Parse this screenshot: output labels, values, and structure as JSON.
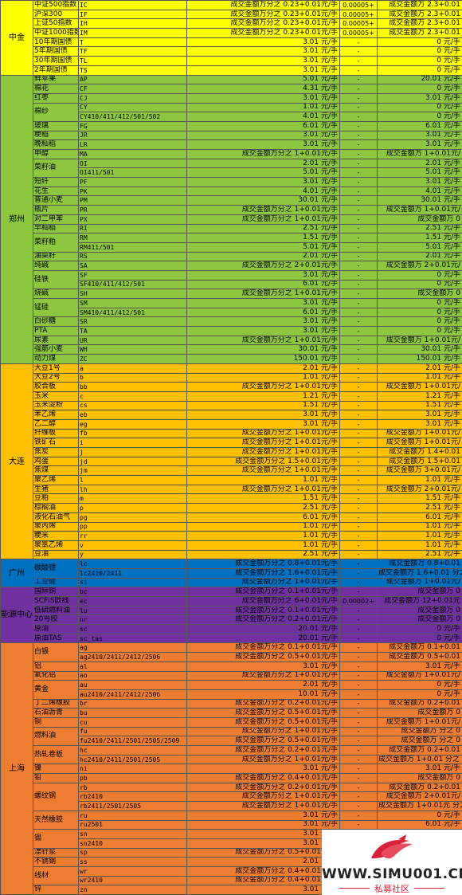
{
  "colors": {
    "中金": "#ffff00",
    "郑州": "#8dc63f",
    "大连": "#ffc000",
    "广州": "#0070c0",
    "能源中心": "#7030a0",
    "上海": "#ed7d31"
  },
  "groups": [
    {
      "exchange": "中金",
      "rows": [
        [
          "中证500指数",
          "IC",
          "成交金额万分之 0.23+0.01元/手",
          "0.00005+",
          "成交金额万 2.3+0.01"
        ],
        [
          "沪深300",
          "IF",
          "成交金额万分之 0.23+0.01元/手",
          "0.00005+",
          "成交金额万 2.3+0.01"
        ],
        [
          "上证50指数",
          "IH",
          "成交金额万分之 0.23+0.01元/手",
          "0.00005+",
          "成交金额万 2.3+0.01"
        ],
        [
          "中证1000指数",
          "IM",
          "成交金额万分之 0.23+0.01元/手",
          "0.00005+",
          "成交金额万 2.3+0.01"
        ],
        [
          "10年期国债",
          "T",
          "3.01 元/手",
          "-",
          "0 元/手"
        ],
        [
          "5年期国债",
          "TF",
          "3.01 元/手",
          "-",
          "0 元/手"
        ],
        [
          "30年期国债",
          "TL",
          "3.01 元/手",
          "-",
          "0 元/手"
        ],
        [
          "2年期国债",
          "TS",
          "3.01 元/手",
          "-",
          "0 元/手"
        ]
      ]
    },
    {
      "exchange": "郑州",
      "rows": [
        [
          "鲜苹果",
          "AP",
          "5.01 元/手",
          "-",
          "20.01 元/手"
        ],
        [
          "棉花",
          "CF",
          "4.31 元/手",
          "-",
          "0 元/手"
        ],
        [
          "红枣",
          "CJ",
          "3.01 元/手",
          "-",
          "3.01 元/手"
        ],
        [
          "棉纱",
          "CY",
          "1.01 元/手",
          "-",
          "0 元/手"
        ],
        [
          "",
          "CY410/411/412/501/502",
          "4.01 元/手",
          "-",
          "0 元/手"
        ],
        [
          "玻璃",
          "FG",
          "6.01 元/手",
          "-",
          "6.01 元/手"
        ],
        [
          "粳稻",
          "JR",
          "3.01 元/手",
          "-",
          "3.01 元/手"
        ],
        [
          "晚籼稻",
          "LR",
          "3.01 元/手",
          "-",
          "3.01 元/手"
        ],
        [
          "甲醇",
          "MA",
          "成交金额万分之 1+0.01元/手",
          "-",
          "成交金额万 1+0.01元/"
        ],
        [
          "菜籽油",
          "OI",
          "2.01 元/手",
          "-",
          "2.01 元/手"
        ],
        [
          "",
          "OI411/501",
          "5.01 元/手",
          "-",
          "5.01 元/手"
        ],
        [
          "短纤",
          "PF",
          "3.01 元/手",
          "-",
          "3.01 元/手"
        ],
        [
          "花生",
          "PK",
          "4.01 元/手",
          "-",
          "4.01 元/手"
        ],
        [
          "普通小麦",
          "PM",
          "30.01 元/手",
          "-",
          "30.01 元/手"
        ],
        [
          "瓶片",
          "PR",
          "成交金额万分之 1+0.01元/手",
          "-",
          "成交金额万 1+0.01元/"
        ],
        [
          "对二甲苯",
          "PX",
          "成交金额万分之 1+0.01元/手",
          "-",
          "成交金额万 0"
        ],
        [
          "早籼稻",
          "RI",
          "2.51 元/手",
          "-",
          "2.51 元/手"
        ],
        [
          "菜籽粕",
          "RM",
          "1.51 元/手",
          "-",
          "1.51 元/手"
        ],
        [
          "",
          "RM411/501",
          "5.01 元/手",
          "-",
          "5.01 元/手"
        ],
        [
          "油菜籽",
          "RS",
          "2.01 元/手",
          "-",
          "2.01 元/手"
        ],
        [
          "纯碱",
          "SA",
          "成交金额万分之 2+0.01元/手",
          "-",
          "成交金额万 2+0.01元/"
        ],
        [
          "硅铁",
          "SF",
          "3.01 元/手",
          "-",
          "0 元/手"
        ],
        [
          "",
          "SF410/411/412/501",
          "6.01 元/手",
          "-",
          "0 元/手"
        ],
        [
          "烧碱",
          "SH",
          "成交金额万分之 1+0.01元/手",
          "-",
          "成交金额万 0"
        ],
        [
          "锰硅",
          "SM",
          "3.01 元/手",
          "-",
          "0 元/手"
        ],
        [
          "",
          "SM410/411/412/501",
          "6.01 元/手",
          "-",
          "0 元/手"
        ],
        [
          "白砂糖",
          "SR",
          "3.01 元/手",
          "-",
          "0 元/手"
        ],
        [
          "PTA",
          "TA",
          "3.01 元/手",
          "-",
          "0 元/手"
        ],
        [
          "尿素",
          "UR",
          "成交金额万分之 1+0.01元/手",
          "-",
          "成交金额万 1+0.01元/"
        ],
        [
          "强筋小麦",
          "WH",
          "30.01 元/手",
          "-",
          "30.01 元/手"
        ],
        [
          "动力煤",
          "ZC",
          "150.01 元/手",
          "-",
          "150.01 元/手"
        ]
      ]
    },
    {
      "exchange": "大连",
      "rows": [
        [
          "大豆1号",
          "a",
          "2.01 元/手",
          "-",
          "2.01 元/手"
        ],
        [
          "大豆2号",
          "b",
          "1.01 元/手",
          "-",
          "1.01 元/手"
        ],
        [
          "胶合板",
          "bb",
          "成交金额万分之 1+0.01元/手",
          "-",
          "成交金额万 1+0.01元/"
        ],
        [
          "玉米",
          "c",
          "1.21 元/手",
          "-",
          "1.21 元/手"
        ],
        [
          "玉米淀粉",
          "cs",
          "1.51 元/手",
          "-",
          "1.51 元/手"
        ],
        [
          "苯乙烯",
          "eb",
          "3.01 元/手",
          "-",
          "3.01 元/手"
        ],
        [
          "乙二醇",
          "eg",
          "3.01 元/手",
          "-",
          "3.01 元/手"
        ],
        [
          "纤维板",
          "fb",
          "成交金额万分之 1+0.01元/手",
          "-",
          "成交金额万 1+0.01元/"
        ],
        [
          "铁矿石",
          "i",
          "成交金额万分之 1+0.01元/手",
          "-",
          "成交金额万 1+0.01元/"
        ],
        [
          "焦炭",
          "j",
          "成交金额万分之 1+0.01元/手",
          "-",
          "成交金额万 1.4+0.01"
        ],
        [
          "鸡蛋",
          "jd",
          "成交金额万分之 1.5+0.01元/手",
          "-",
          "成交金额万 1.5+0.01"
        ],
        [
          "焦煤",
          "jm",
          "成交金额万分之 1+0.01元/手",
          "-",
          "成交金额万 3+0.01元/"
        ],
        [
          "聚乙烯",
          "l",
          "1.01 元/手",
          "-",
          "1.01 元/手"
        ],
        [
          "生猪",
          "lh",
          "成交金额万分之 1+0.01元/手",
          "-",
          "成交金额万 2+0.01元/"
        ],
        [
          "豆粕",
          "m",
          "1.51 元/手",
          "-",
          "1.51 元/手"
        ],
        [
          "棕榈油",
          "p",
          "2.51 元/手",
          "-",
          "2.51 元/手"
        ],
        [
          "液化石油气",
          "pg",
          "6.01 元/手",
          "-",
          "6.01 元/手"
        ],
        [
          "聚丙烯",
          "pp",
          "1.01 元/手",
          "-",
          "1.01 元/手"
        ],
        [
          "粳米",
          "rr",
          "1.01 元/手",
          "-",
          "1.01 元/手"
        ],
        [
          "聚氯乙烯",
          "v",
          "1.01 元/手",
          "-",
          "1.01 元/手"
        ],
        [
          "豆油",
          "y",
          "2.51 元/手",
          "-",
          "2.51 元/手"
        ]
      ]
    },
    {
      "exchange": "广州",
      "rows": [
        [
          "碳酸锂",
          "lc",
          "成交金额万分之 0.8+0.01元/手",
          "-",
          "成交金额万 0.8+0.01"
        ],
        [
          "",
          "lc2410/2411",
          "成交金额万分之 1.6+0.01元/手",
          "-",
          "成交金额万 1.6+0.01 分之 元/手"
        ],
        [
          "工业硅",
          "si",
          "成交金额万分之 1+0.01元/手",
          "-",
          "成交金额万 1+0.01元/"
        ]
      ]
    },
    {
      "exchange": "能源中心",
      "rows": [
        [
          "国际铜",
          "bc",
          "成交金额万分之 0.1+0.01元/手",
          "-",
          "成交金额万 0"
        ],
        [
          "SCFIS欧线",
          "ec",
          "成交金额万分之 6+0.01元/手",
          "0.00002+",
          "成交金额万 12+0.01元"
        ],
        [
          "低硫燃料油",
          "lu",
          "成交金额万分之 0.1+0.01元/手",
          "-",
          "成交金额万 0"
        ],
        [
          "20号胶",
          "nr",
          "成交金额万分之 0.2+0.01元/手",
          "-",
          "成交金额万 0"
        ],
        [
          "原油",
          "sc",
          "20.01 元/手",
          "-",
          "0 元/手"
        ],
        [
          "原油TAS",
          "sc_tas",
          "20.01 元/手",
          "-",
          "0 元/手"
        ]
      ]
    },
    {
      "exchange": "上海",
      "rows": [
        [
          "白银",
          "ag",
          "成交金额万分之 0.1+0.01元/手",
          "-",
          "成交金额万 0.1+0.01"
        ],
        [
          "",
          "ag2410/2411/2412/2506",
          "成交金额万分之 0.5+0.01元/手",
          "-",
          "成交金额万 0.5+0.01"
        ],
        [
          "铝",
          "al",
          "3.01 元/手",
          "-",
          "3.01 元/手"
        ],
        [
          "氧化铝",
          "ao",
          "成交金额万分之 1+0.01元/手",
          "-",
          "成交金额万 1+0.01元/"
        ],
        [
          "黄金",
          "au",
          "2.01 元/手",
          "-",
          "0 元/手"
        ],
        [
          "",
          "au2410/2411/2412/2506",
          "10.01 元/手",
          "-",
          "0 元/手"
        ],
        [
          "丁二烯橡胶",
          "br",
          "成交金额万分之 0.2+0.01元/手",
          "-",
          "成交金额万 0.2+0.01"
        ],
        [
          "石油沥青",
          "bu",
          "成交金额万分之 0.5+0.01元/手",
          "-",
          "成交金额万 0"
        ],
        [
          "铜",
          "cu",
          "成交金额万分之 0.5+0.01元/手",
          "-",
          "成交金额万 1+0.01元/"
        ],
        [
          "燃料油",
          "fu",
          "成交金额万分之 1+0.01元/手",
          "-",
          "成交金额万 分之 0"
        ],
        [
          "",
          "fu2410/2411/2501/2505/2509",
          "成交金额万分之 0.5+0.01元/手",
          "-",
          "成交金额万 分之 0"
        ],
        [
          "热轧卷板",
          "hc",
          "成交金额万分之 0.2+0.01元/手",
          "-",
          "成交金额万 0.2+0.01"
        ],
        [
          "",
          "hc2410/2411/2501/2505",
          "成交金额万分之 1+0.01元/手",
          "-",
          "成交金额万 1+0.01 分之 元/手"
        ],
        [
          "镍",
          "ni",
          "3.01 元/手",
          "-",
          "3.01 元/手"
        ],
        [
          "铅",
          "pb",
          "成交金额万分之 0.4+0.01元/手",
          "-",
          "成交金额万 0"
        ],
        [
          "螺纹钢",
          "rb",
          "成交金额万分之 0.2+0.01元/手",
          "-",
          "成交金额万 0.2+0.01"
        ],
        [
          "",
          "rb2410",
          "成交金额万分之 1+0.01元/手",
          "-",
          "成交金额万 2+0.01元/"
        ],
        [
          "",
          "rb2411/2501/2505",
          "成交金额万分之 1+0.01元/手",
          "-",
          "成交金额万 1+0.01元 分之 手"
        ],
        [
          "天然橡胶",
          "ru",
          "3.01 元/手",
          "-",
          "0 元/手"
        ],
        [
          "",
          "ru2501",
          "3.01 元/手",
          "-",
          "6.01 元/手"
        ],
        [
          "锡",
          "sn",
          "3.01 元/手",
          "-",
          ""
        ],
        [
          "",
          "sn2410",
          "3.01 元/手",
          "-",
          ""
        ],
        [
          "漂针浆",
          "sp",
          "成交金额万分之 0.5+0.01元/手",
          "-",
          ""
        ],
        [
          "不锈钢",
          "ss",
          "2.01 元/手",
          "-",
          ""
        ],
        [
          "线材",
          "wr",
          "成交金额万分之 0.4+0.01元/手",
          "-",
          ""
        ],
        [
          "",
          "wr2410",
          "成交金额万分之 0.4+0.01元/手",
          "-",
          ""
        ],
        [
          "锌",
          "zn",
          "3.01 元/手",
          "-",
          ""
        ]
      ]
    }
  ],
  "watermark": {
    "site": "WWW.SIMU001.CN",
    "sub": "私募社区",
    "icon": "bull-logo-icon"
  }
}
